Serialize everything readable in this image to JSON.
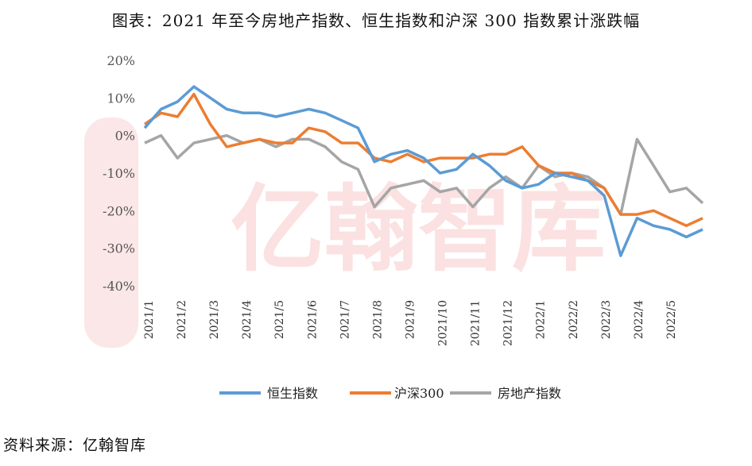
{
  "title": "图表：2021 年至今房地产指数、恒生指数和沪深 300 指数累计涨跌幅",
  "source": "资料来源：亿翰智库",
  "watermark": "亿翰智库",
  "chart_data": {
    "type": "line",
    "ylim": [
      -40,
      20
    ],
    "yticks": [
      "20%",
      "10%",
      "0%",
      "-10%",
      "-20%",
      "-30%",
      "-40%"
    ],
    "yticks_values": [
      20,
      10,
      0,
      -10,
      -20,
      -30,
      -40
    ],
    "xticks": [
      "2021/1",
      "2021/2",
      "2021/3",
      "2021/4",
      "2021/5",
      "2021/6",
      "2021/7",
      "2021/8",
      "2021/9",
      "2021/10",
      "2021/11",
      "2021/12",
      "2022/1",
      "2022/2",
      "2022/3",
      "2022/4",
      "2022/5"
    ],
    "x": [
      "2021/1",
      "2021/1.5",
      "2021/2",
      "2021/2.5",
      "2021/3",
      "2021/3.5",
      "2021/4",
      "2021/4.5",
      "2021/5",
      "2021/5.5",
      "2021/6",
      "2021/6.5",
      "2021/7",
      "2021/7.5",
      "2021/8",
      "2021/8.5",
      "2021/9",
      "2021/9.5",
      "2021/10",
      "2021/10.5",
      "2021/11",
      "2021/11.5",
      "2021/12",
      "2021/12.5",
      "2022/1",
      "2022/1.5",
      "2022/2",
      "2022/2.5",
      "2022/3",
      "2022/3.5",
      "2022/4",
      "2022/4.5",
      "2022/5",
      "2022/5.5",
      "2022/5.9"
    ],
    "series": [
      {
        "name": "恒生指数",
        "color": "#5b9bd5",
        "values": [
          2,
          7,
          9,
          13,
          10,
          7,
          6,
          6,
          5,
          6,
          7,
          6,
          4,
          2,
          -7,
          -5,
          -4,
          -6,
          -10,
          -9,
          -5,
          -8,
          -12,
          -14,
          -13,
          -10,
          -11,
          -12,
          -16,
          -32,
          -22,
          -24,
          -25,
          -27,
          -25
        ]
      },
      {
        "name": "沪深300",
        "color": "#ed7d31",
        "values": [
          3,
          6,
          5,
          11,
          3,
          -3,
          -2,
          -1,
          -2,
          -2,
          2,
          1,
          -2,
          -2,
          -6,
          -7,
          -5,
          -7,
          -6,
          -6,
          -6,
          -5,
          -5,
          -3,
          -8,
          -10,
          -10,
          -12,
          -14,
          -21,
          -21,
          -20,
          -22,
          -24,
          -22
        ]
      },
      {
        "name": "房地产指数",
        "color": "#a5a5a5",
        "values": [
          -2,
          0,
          -6,
          -2,
          -1,
          0,
          -2,
          -1,
          -3,
          -1,
          -1,
          -3,
          -7,
          -9,
          -19,
          -14,
          -13,
          -12,
          -15,
          -14,
          -19,
          -14,
          -11,
          -14,
          -8,
          -11,
          -10,
          -11,
          -14,
          -21,
          -1,
          -8,
          -15,
          -14,
          -18
        ]
      }
    ],
    "legend": "bottom"
  }
}
